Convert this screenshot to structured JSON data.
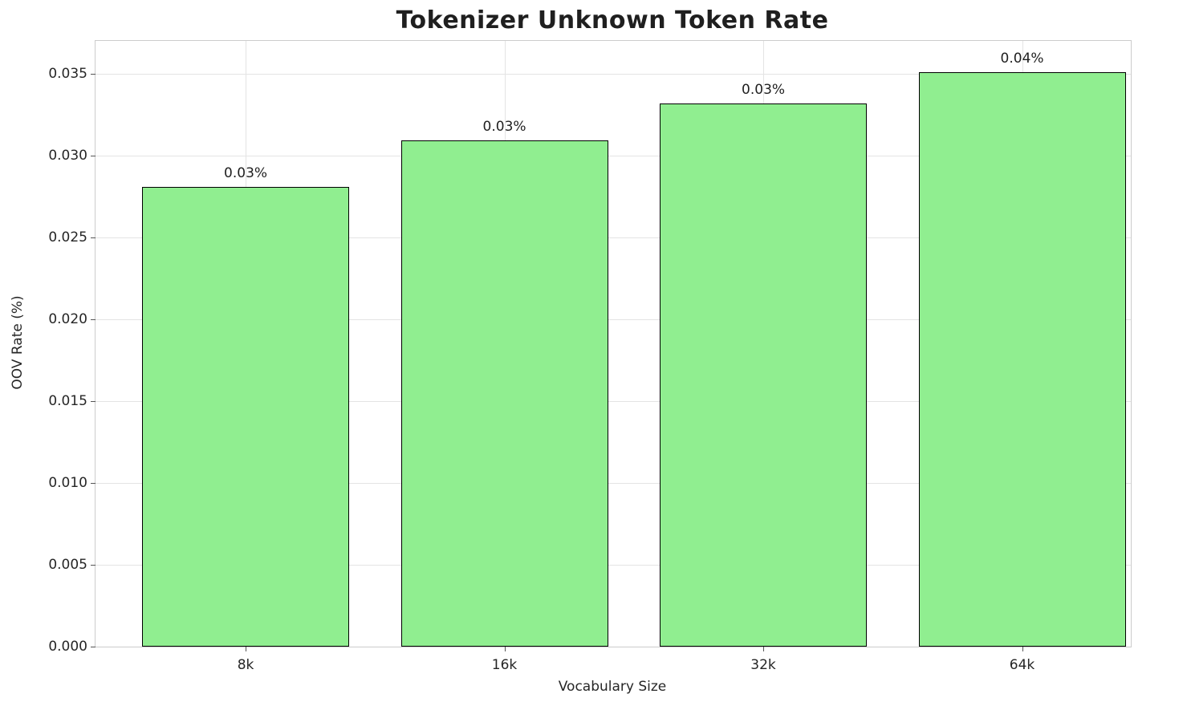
{
  "chart_data": {
    "type": "bar",
    "title": "Tokenizer Unknown Token Rate",
    "xlabel": "Vocabulary Size",
    "ylabel": "OOV Rate (%)",
    "categories": [
      "8k",
      "16k",
      "32k",
      "64k"
    ],
    "values": [
      0.0281,
      0.0309,
      0.0332,
      0.0351
    ],
    "value_labels": [
      "0.03%",
      "0.03%",
      "0.03%",
      "0.04%"
    ],
    "ylim": [
      0,
      0.037
    ],
    "yticks": [
      0.0,
      0.005,
      0.01,
      0.015,
      0.02,
      0.025,
      0.03,
      0.035
    ],
    "ytick_labels": [
      "0.000",
      "0.005",
      "0.010",
      "0.015",
      "0.020",
      "0.025",
      "0.030",
      "0.035"
    ],
    "bar_color": "#90EE90",
    "bar_edge_color": "#000000",
    "grid": true,
    "grid_color": "#e4e4e4",
    "legend": "none"
  }
}
